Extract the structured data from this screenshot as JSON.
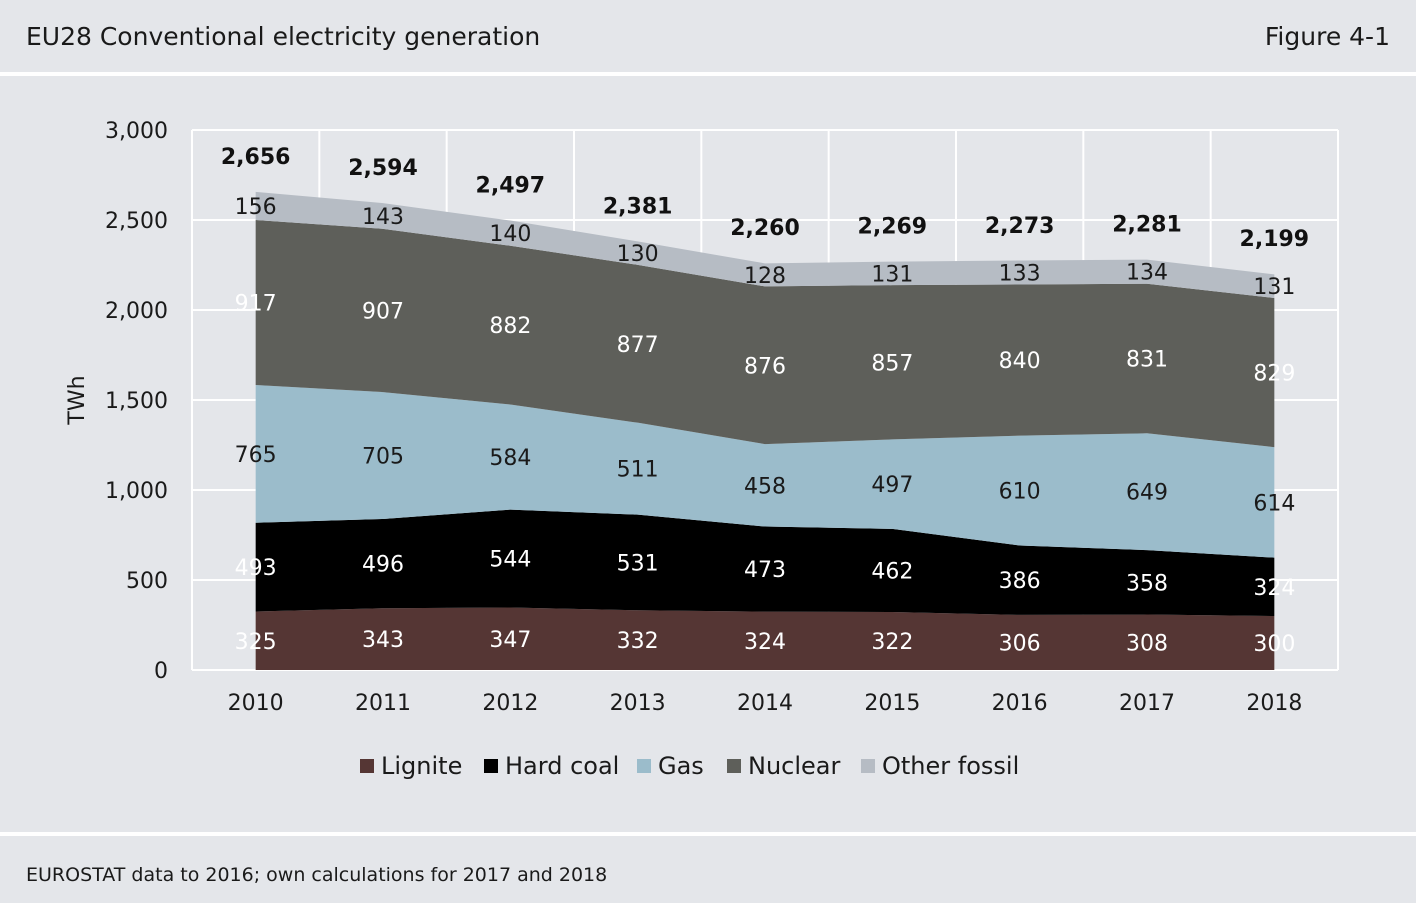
{
  "header": {
    "title": "EU28 Conventional electricity generation",
    "figure_label": "Figure 4-1"
  },
  "footer": {
    "source": "EUROSTAT data to 2016; own calculations for 2017 and 2018"
  },
  "colors": {
    "Lignite": "#553634",
    "Hard coal": "#000000",
    "Gas": "#9bbccb",
    "Nuclear": "#5e5f5a",
    "Other fossil": "#b6bcc4",
    "grid": "#ffffff"
  },
  "chart_data": {
    "type": "area",
    "stacked": true,
    "title": "",
    "xlabel": "",
    "ylabel": "TWh",
    "ylim": [
      0,
      3000
    ],
    "yticks": [
      0,
      500,
      1000,
      1500,
      2000,
      2500,
      3000
    ],
    "ytick_labels": [
      "0",
      "500",
      "1,000",
      "1,500",
      "2,000",
      "2,500",
      "3,000"
    ],
    "categories": [
      "2010",
      "2011",
      "2012",
      "2013",
      "2014",
      "2015",
      "2016",
      "2017",
      "2018"
    ],
    "series": [
      {
        "name": "Lignite",
        "values": [
          325,
          343,
          347,
          332,
          324,
          322,
          306,
          308,
          300
        ]
      },
      {
        "name": "Hard coal",
        "values": [
          493,
          496,
          544,
          531,
          473,
          462,
          386,
          358,
          324
        ]
      },
      {
        "name": "Gas",
        "values": [
          765,
          705,
          584,
          511,
          458,
          497,
          610,
          649,
          614
        ]
      },
      {
        "name": "Nuclear",
        "values": [
          917,
          907,
          882,
          877,
          876,
          857,
          840,
          831,
          829
        ]
      },
      {
        "name": "Other fossil",
        "values": [
          156,
          143,
          140,
          130,
          128,
          131,
          133,
          134,
          131
        ]
      }
    ],
    "totals": [
      2656,
      2594,
      2497,
      2381,
      2260,
      2269,
      2273,
      2281,
      2199
    ],
    "total_labels": [
      "2,656",
      "2,594",
      "2,497",
      "2,381",
      "2,260",
      "2,269",
      "2,273",
      "2,281",
      "2,199"
    ],
    "grid": true,
    "legend_position": "bottom"
  }
}
